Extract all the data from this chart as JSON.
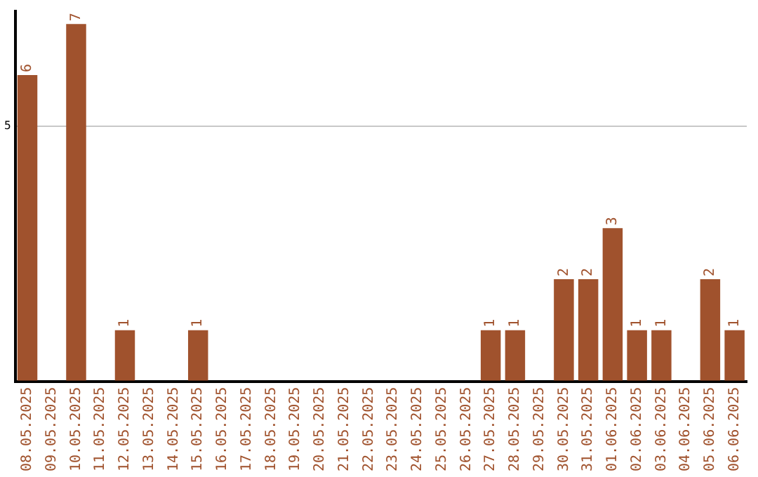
{
  "chart_data": {
    "type": "bar",
    "categories": [
      "08.05.2025",
      "09.05.2025",
      "10.05.2025",
      "11.05.2025",
      "12.05.2025",
      "13.05.2025",
      "14.05.2025",
      "15.05.2025",
      "16.05.2025",
      "17.05.2025",
      "18.05.2025",
      "19.05.2025",
      "20.05.2025",
      "21.05.2025",
      "22.05.2025",
      "23.05.2025",
      "24.05.2025",
      "25.05.2025",
      "26.05.2025",
      "27.05.2025",
      "28.05.2025",
      "29.05.2025",
      "30.05.2025",
      "31.05.2025",
      "01.06.2025",
      "02.06.2025",
      "03.06.2025",
      "04.06.2025",
      "05.06.2025",
      "06.06.2025"
    ],
    "values": [
      6,
      0,
      7,
      0,
      1,
      0,
      0,
      1,
      0,
      0,
      0,
      0,
      0,
      0,
      0,
      0,
      0,
      0,
      0,
      1,
      1,
      0,
      2,
      2,
      3,
      1,
      1,
      0,
      2,
      1
    ],
    "value_labels": [
      "6",
      null,
      "7",
      null,
      "1",
      null,
      null,
      "1",
      null,
      null,
      null,
      null,
      null,
      null,
      null,
      null,
      null,
      null,
      null,
      "1",
      "1",
      null,
      "2",
      "2",
      "3",
      "1",
      "1",
      null,
      "2",
      "1"
    ],
    "color": "#a0522d",
    "ylim": [
      0,
      7.25
    ],
    "yticks": [
      {
        "value": 0,
        "label": null
      },
      5
    ],
    "grid": "y",
    "legend": false
  }
}
